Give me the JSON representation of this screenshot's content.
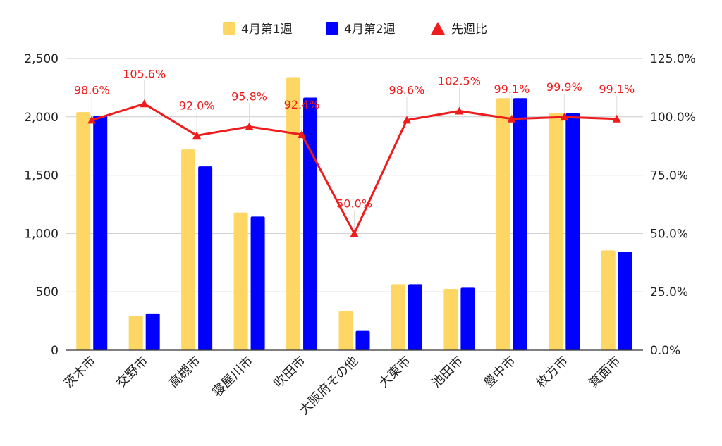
{
  "chart_data": {
    "type": "bar",
    "categories": [
      "茨木市",
      "交野市",
      "高槻市",
      "寝屋川市",
      "吹田市",
      "大阪府その他",
      "大東市",
      "池田市",
      "豊中市",
      "枚方市",
      "箕面市"
    ],
    "series": [
      {
        "name": "4月第1週",
        "type": "bar",
        "axis": "left",
        "color": "#fdd663",
        "values": [
          2040,
          295,
          1720,
          1180,
          2340,
          335,
          565,
          525,
          2160,
          2030,
          855
        ]
      },
      {
        "name": "4月第2週",
        "type": "bar",
        "axis": "left",
        "color": "#0000ff",
        "values": [
          2010,
          315,
          1575,
          1145,
          2165,
          165,
          565,
          535,
          2160,
          2030,
          845
        ]
      },
      {
        "name": "先週比",
        "type": "line",
        "axis": "right",
        "color": "#ee1c1c",
        "marker": "triangle",
        "values": [
          98.6,
          105.6,
          92.0,
          95.8,
          92.4,
          50.0,
          98.6,
          102.5,
          99.1,
          99.9,
          99.1
        ],
        "labels": [
          "98.6%",
          "105.6%",
          "92.0%",
          "95.8%",
          "92.4%",
          "50.0%",
          "98.6%",
          "102.5%",
          "99.1%",
          "99.9%",
          "99.1%"
        ]
      }
    ],
    "left_axis": {
      "ylim": [
        0,
        2500
      ],
      "ticks": [
        "0",
        "500",
        "1,000",
        "1,500",
        "2,000",
        "2,500"
      ]
    },
    "right_axis": {
      "ylim": [
        0,
        125
      ],
      "ticks": [
        "0.0%",
        "25.0%",
        "50.0%",
        "75.0%",
        "100.0%",
        "125.0%"
      ]
    },
    "grid": true,
    "legend_position": "top-center",
    "title": ""
  }
}
